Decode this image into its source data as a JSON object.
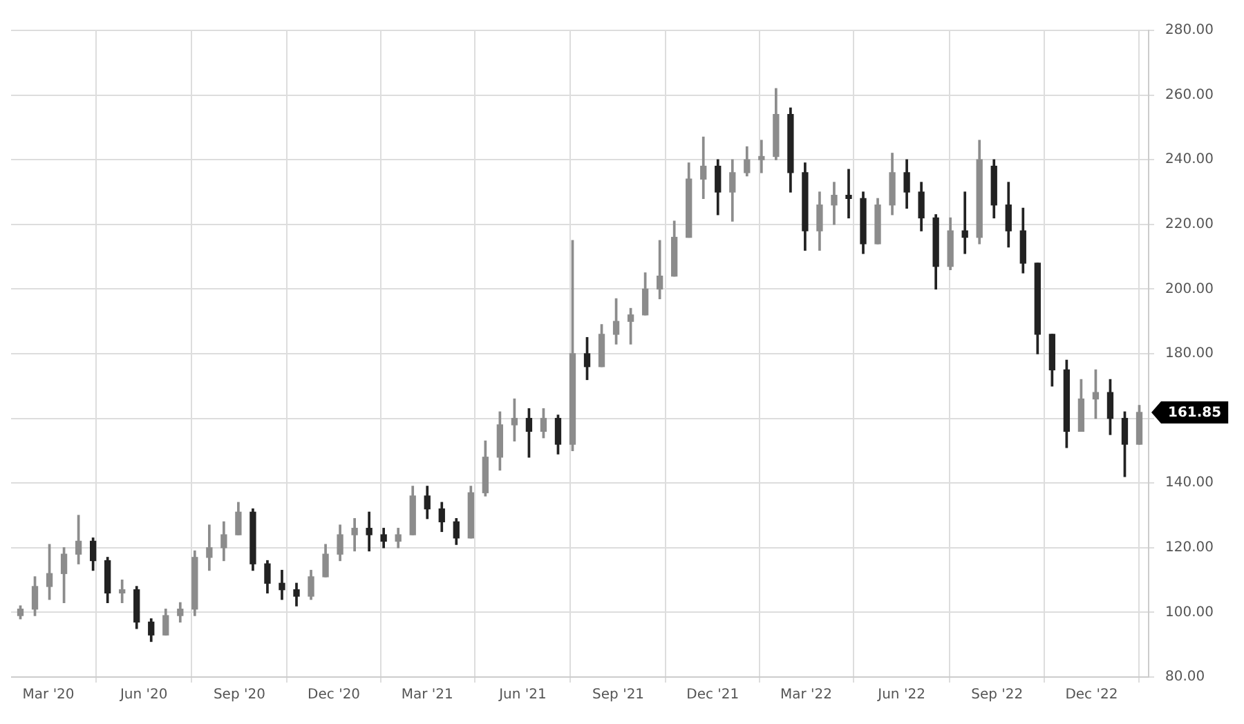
{
  "chart_data": {
    "type": "candlestick",
    "colors": [
      "#8c8c8c",
      "#8c8c8c",
      "#8c8c8c",
      "#8c8c8c",
      "#8c8c8c",
      "#222222",
      "#222222",
      "#8c8c8c",
      "#222222",
      "#222222",
      "#8c8c8c",
      "#8c8c8c",
      "#8c8c8c",
      "#8c8c8c",
      "#8c8c8c",
      "#8c8c8c",
      "#222222",
      "#222222",
      "#222222",
      "#222222",
      "#8c8c8c",
      "#8c8c8c",
      "#8c8c8c",
      "#8c8c8c",
      "#222222",
      "#222222",
      "#8c8c8c",
      "#8c8c8c",
      "#222222",
      "#222222",
      "#222222",
      "#8c8c8c",
      "#8c8c8c",
      "#8c8c8c",
      "#8c8c8c",
      "#222222",
      "#8c8c8c",
      "#222222",
      "#8c8c8c",
      "#222222",
      "#8c8c8c",
      "#8c8c8c",
      "#8c8c8c",
      "#8c8c8c",
      "#8c8c8c",
      "#8c8c8c",
      "#8c8c8c",
      "#8c8c8c",
      "#222222",
      "#8c8c8c",
      "#8c8c8c",
      "#8c8c8c",
      "#8c8c8c",
      "#222222",
      "#222222",
      "#8c8c8c",
      "#8c8c8c",
      "#222222",
      "#222222",
      "#8c8c8c",
      "#8c8c8c",
      "#222222",
      "#222222",
      "#222222",
      "#8c8c8c",
      "#222222",
      "#8c8c8c",
      "#222222",
      "#222222",
      "#222222",
      "#222222",
      "#222222",
      "#222222",
      "#8c8c8c",
      "#8c8c8c",
      "#222222",
      "#222222",
      "#8c8c8c"
    ],
    "x": [
      "2020-02-03",
      "2020-02-17",
      "2020-03-02",
      "2020-03-16",
      "2020-03-30",
      "2020-04-13",
      "2020-04-27",
      "2020-05-11",
      "2020-05-25",
      "2020-06-08",
      "2020-06-22",
      "2020-07-06",
      "2020-07-20",
      "2020-08-03",
      "2020-08-17",
      "2020-08-31",
      "2020-09-14",
      "2020-09-28",
      "2020-10-12",
      "2020-10-26",
      "2020-11-09",
      "2020-11-23",
      "2020-12-07",
      "2020-12-21",
      "2021-01-04",
      "2021-01-18",
      "2021-02-01",
      "2021-02-15",
      "2021-03-01",
      "2021-03-15",
      "2021-03-29",
      "2021-04-12",
      "2021-04-26",
      "2021-05-10",
      "2021-05-24",
      "2021-06-07",
      "2021-06-21",
      "2021-07-05",
      "2021-07-19",
      "2021-08-02",
      "2021-08-16",
      "2021-08-30",
      "2021-09-13",
      "2021-09-27",
      "2021-10-11",
      "2021-10-25",
      "2021-11-08",
      "2021-11-22",
      "2021-12-06",
      "2021-12-20",
      "2022-01-03",
      "2022-01-17",
      "2022-01-31",
      "2022-02-14",
      "2022-02-28",
      "2022-03-14",
      "2022-03-28",
      "2022-04-11",
      "2022-04-25",
      "2022-05-09",
      "2022-05-23",
      "2022-06-06",
      "2022-06-20",
      "2022-07-04",
      "2022-07-18",
      "2022-08-01",
      "2022-08-15",
      "2022-08-29",
      "2022-09-12",
      "2022-09-26",
      "2022-10-10",
      "2022-10-24",
      "2022-11-07",
      "2022-11-21",
      "2022-12-05",
      "2022-12-19",
      "2023-01-02",
      "2023-01-16"
    ],
    "ohlc": [
      [
        99,
        102,
        98,
        101
      ],
      [
        101,
        111,
        99,
        108
      ],
      [
        108,
        121,
        104,
        112
      ],
      [
        112,
        120,
        103,
        118
      ],
      [
        118,
        130,
        115,
        122
      ],
      [
        122,
        123,
        113,
        116
      ],
      [
        116,
        117,
        103,
        106
      ],
      [
        106,
        110,
        103,
        107
      ],
      [
        107,
        108,
        95,
        97
      ],
      [
        97,
        98,
        91,
        93
      ],
      [
        93,
        101,
        93,
        99
      ],
      [
        99,
        103,
        97,
        101
      ],
      [
        101,
        119,
        99,
        117
      ],
      [
        117,
        127,
        113,
        120
      ],
      [
        120,
        128,
        116,
        124
      ],
      [
        124,
        134,
        124,
        131
      ],
      [
        131,
        132,
        113,
        115
      ],
      [
        115,
        116,
        106,
        109
      ],
      [
        109,
        113,
        104,
        107
      ],
      [
        107,
        109,
        102,
        105
      ],
      [
        105,
        113,
        104,
        111
      ],
      [
        111,
        121,
        111,
        118
      ],
      [
        118,
        127,
        116,
        124
      ],
      [
        124,
        129,
        119,
        126
      ],
      [
        126,
        131,
        119,
        124
      ],
      [
        124,
        126,
        120,
        122
      ],
      [
        122,
        126,
        120,
        124
      ],
      [
        124,
        139,
        124,
        136
      ],
      [
        136,
        139,
        129,
        132
      ],
      [
        132,
        134,
        125,
        128
      ],
      [
        128,
        129,
        121,
        123
      ],
      [
        123,
        139,
        123,
        137
      ],
      [
        137,
        153,
        136,
        148
      ],
      [
        148,
        162,
        144,
        158
      ],
      [
        158,
        166,
        153,
        160
      ],
      [
        160,
        163,
        148,
        156
      ],
      [
        156,
        163,
        154,
        160
      ],
      [
        160,
        161,
        149,
        152
      ],
      [
        152,
        215,
        150,
        180
      ],
      [
        180,
        185,
        172,
        176
      ],
      [
        176,
        189,
        176,
        186
      ],
      [
        186,
        197,
        183,
        190
      ],
      [
        190,
        194,
        183,
        192
      ],
      [
        192,
        205,
        192,
        200
      ],
      [
        200,
        215,
        197,
        204
      ],
      [
        204,
        221,
        204,
        216
      ],
      [
        216,
        239,
        216,
        234
      ],
      [
        234,
        247,
        228,
        238
      ],
      [
        238,
        240,
        223,
        230
      ],
      [
        230,
        240,
        221,
        236
      ],
      [
        236,
        244,
        235,
        240
      ],
      [
        240,
        246,
        236,
        241
      ],
      [
        241,
        262,
        240,
        254
      ],
      [
        254,
        256,
        230,
        236
      ],
      [
        236,
        239,
        212,
        218
      ],
      [
        218,
        230,
        212,
        226
      ],
      [
        226,
        233,
        220,
        229
      ],
      [
        229,
        237,
        222,
        228
      ],
      [
        228,
        230,
        211,
        214
      ],
      [
        214,
        228,
        214,
        226
      ],
      [
        226,
        242,
        223,
        236
      ],
      [
        236,
        240,
        225,
        230
      ],
      [
        230,
        233,
        218,
        222
      ],
      [
        222,
        223,
        200,
        207
      ],
      [
        207,
        222,
        206,
        218
      ],
      [
        218,
        230,
        211,
        216
      ],
      [
        216,
        246,
        214,
        240
      ],
      [
        238,
        240,
        222,
        226
      ],
      [
        226,
        233,
        213,
        218
      ],
      [
        218,
        225,
        205,
        208
      ],
      [
        208,
        208,
        180,
        186
      ],
      [
        186,
        186,
        170,
        175
      ],
      [
        175,
        178,
        151,
        156
      ],
      [
        156,
        172,
        156,
        166
      ],
      [
        166,
        175,
        160,
        168
      ],
      [
        168,
        172,
        155,
        160
      ],
      [
        160,
        162,
        142,
        152
      ],
      [
        152,
        164,
        152,
        161.85
      ]
    ],
    "xlim": [
      "2020-01-25",
      "2023-01-25"
    ],
    "xticks": [
      {
        "value": "2020-03-01",
        "label": "Mar '20"
      },
      {
        "value": "2020-06-01",
        "label": "Jun '20"
      },
      {
        "value": "2020-09-01",
        "label": "Sep '20"
      },
      {
        "value": "2020-12-01",
        "label": "Dec '20"
      },
      {
        "value": "2021-03-01",
        "label": "Mar '21"
      },
      {
        "value": "2021-06-01",
        "label": "Jun '21"
      },
      {
        "value": "2021-09-01",
        "label": "Sep '21"
      },
      {
        "value": "2021-12-01",
        "label": "Dec '21"
      },
      {
        "value": "2022-03-01",
        "label": "Mar '22"
      },
      {
        "value": "2022-06-01",
        "label": "Jun '22"
      },
      {
        "value": "2022-09-01",
        "label": "Sep '22"
      },
      {
        "value": "2022-12-01",
        "label": "Dec '22"
      }
    ],
    "ylim": [
      80,
      280
    ],
    "yticks": [
      {
        "value": 80,
        "label": "80.00"
      },
      {
        "value": 100,
        "label": "100.00"
      },
      {
        "value": 120,
        "label": "120.00"
      },
      {
        "value": 140,
        "label": "140.00"
      },
      {
        "value": 160,
        "label": null
      },
      {
        "value": 180,
        "label": "180.00"
      },
      {
        "value": 200,
        "label": "200.00"
      },
      {
        "value": 220,
        "label": "220.00"
      },
      {
        "value": 240,
        "label": "240.00"
      },
      {
        "value": 260,
        "label": "260.00"
      },
      {
        "value": 280,
        "label": "280.00"
      }
    ],
    "annotations": [
      {
        "text": "161.85",
        "x": "2023-01-16",
        "y": 161.85
      }
    ],
    "grid": true,
    "legend": false
  }
}
